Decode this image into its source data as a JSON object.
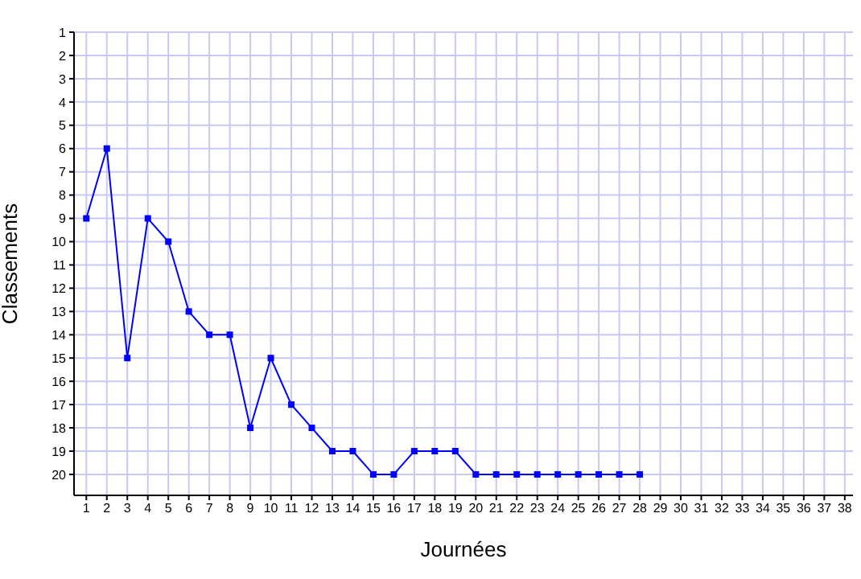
{
  "chart_data": {
    "type": "line",
    "xlabel": "Journées",
    "ylabel": "Classements",
    "x": [
      1,
      2,
      3,
      4,
      5,
      6,
      7,
      8,
      9,
      10,
      11,
      12,
      13,
      14,
      15,
      16,
      17,
      18,
      19,
      20,
      21,
      22,
      23,
      24,
      25,
      26,
      27,
      28
    ],
    "series": [
      {
        "color": "#0000ff",
        "values": [
          9,
          6,
          15,
          9,
          10,
          13,
          14,
          14,
          18,
          15,
          17,
          18,
          19,
          19,
          20,
          20,
          19,
          19,
          19,
          20,
          20,
          20,
          20,
          20,
          20,
          20,
          20,
          20
        ]
      }
    ],
    "xlim": [
      0.4,
      38.4
    ],
    "xticks": [
      1,
      2,
      3,
      4,
      5,
      6,
      7,
      8,
      9,
      10,
      11,
      12,
      13,
      14,
      15,
      16,
      17,
      18,
      19,
      20,
      21,
      22,
      23,
      24,
      25,
      26,
      27,
      28,
      29,
      30,
      31,
      32,
      33,
      34,
      35,
      36,
      37,
      38
    ],
    "ylim": [
      20.9,
      1
    ],
    "yticks": [
      1,
      2,
      3,
      4,
      5,
      6,
      7,
      8,
      9,
      10,
      11,
      12,
      13,
      14,
      15,
      16,
      17,
      18,
      19,
      20
    ],
    "grid": true,
    "marker": "square",
    "line_style": "solid",
    "legend": false
  }
}
